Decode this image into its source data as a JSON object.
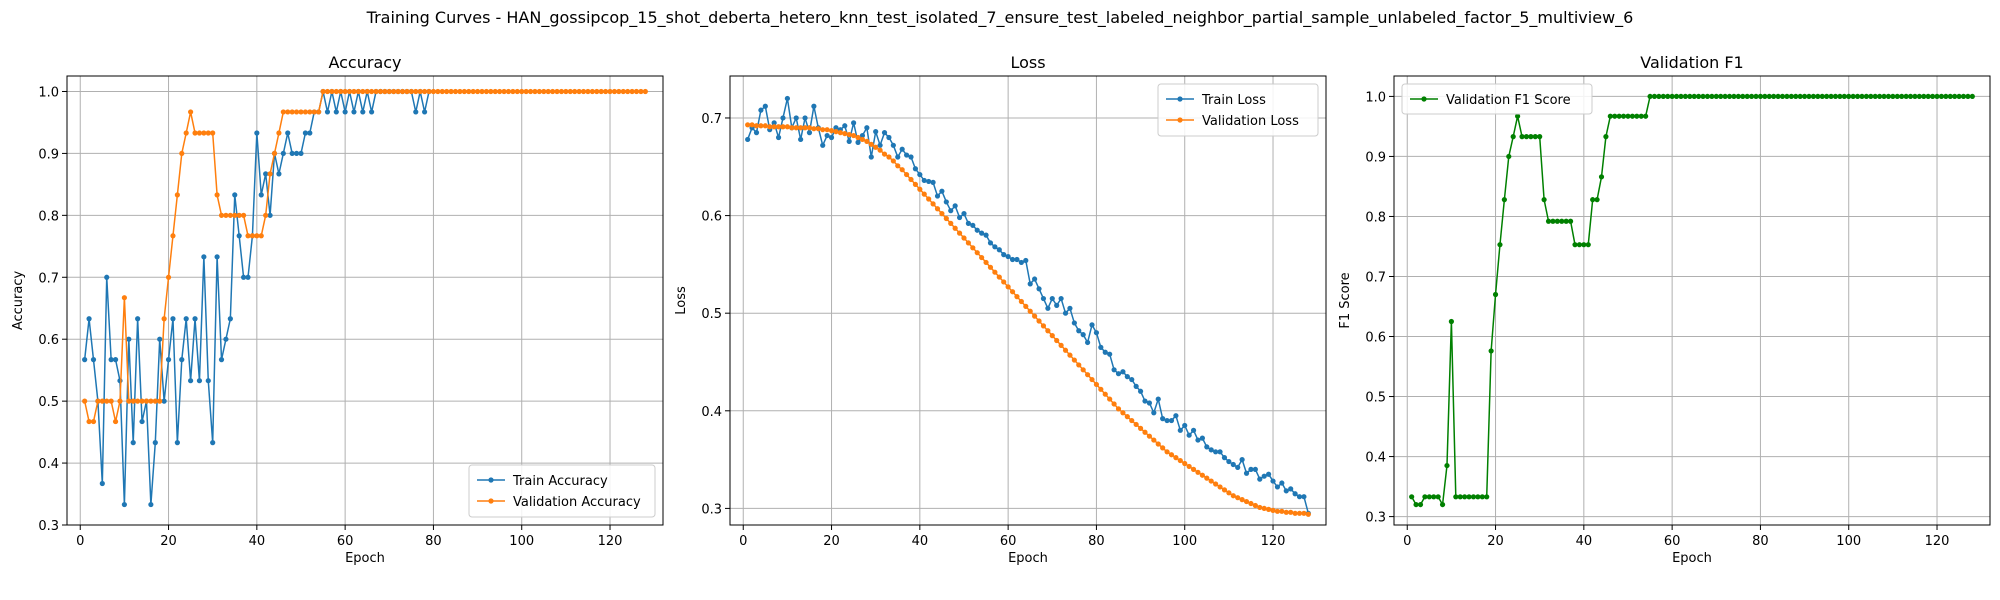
{
  "figure": {
    "suptitle": "Training Curves - HAN_gossipcop_15_shot_deberta_hetero_knn_test_isolated_7_ensure_test_labeled_neighbor_partial_sample_unlabeled_factor_5_multiview_6"
  },
  "colors": {
    "blue": "#1f77b4",
    "orange": "#ff7f0e",
    "green": "#008000",
    "grid": "#b0b0b0"
  },
  "chart_data": [
    {
      "type": "line",
      "title": "Accuracy",
      "xlabel": "Epoch",
      "ylabel": "Accuracy",
      "xlim": [
        -3,
        132
      ],
      "ylim": [
        0.3,
        1.025
      ],
      "xticks": [
        0,
        20,
        40,
        60,
        80,
        100,
        120
      ],
      "yticks": [
        0.3,
        0.4,
        0.5,
        0.6,
        0.7,
        0.8,
        0.9,
        1.0
      ],
      "grid": true,
      "legend_position": "lower-right",
      "series": [
        {
          "name": "Train Accuracy",
          "color": "#1f77b4",
          "x_start": 1,
          "values": [
            0.567,
            0.633,
            0.567,
            0.5,
            0.367,
            0.7,
            0.567,
            0.567,
            0.533,
            0.333,
            0.6,
            0.433,
            0.633,
            0.467,
            0.5,
            0.333,
            0.433,
            0.6,
            0.5,
            0.567,
            0.633,
            0.433,
            0.567,
            0.633,
            0.533,
            0.633,
            0.533,
            0.733,
            0.533,
            0.433,
            0.733,
            0.567,
            0.6,
            0.633,
            0.833,
            0.767,
            0.7,
            0.7,
            0.767,
            0.933,
            0.833,
            0.867,
            0.8,
            0.9,
            0.867,
            0.9,
            0.933,
            0.9,
            0.9,
            0.9,
            0.933,
            0.933,
            0.967,
            0.967,
            1.0,
            0.967,
            1.0,
            0.967,
            1.0,
            0.967,
            1.0,
            0.967,
            1.0,
            0.967,
            1.0,
            0.967,
            1.0,
            1.0,
            1.0,
            1.0,
            1.0,
            1.0,
            1.0,
            1.0,
            1.0,
            0.967,
            1.0,
            0.967,
            1.0
          ]
        },
        {
          "name": "Validation Accuracy",
          "color": "#ff7f0e",
          "x_start": 1,
          "values": [
            0.5,
            0.467,
            0.467,
            0.5,
            0.5,
            0.5,
            0.5,
            0.467,
            0.5,
            0.667,
            0.5,
            0.5,
            0.5,
            0.5,
            0.5,
            0.5,
            0.5,
            0.5,
            0.633,
            0.7,
            0.767,
            0.833,
            0.9,
            0.933,
            0.967,
            0.933,
            0.933,
            0.933,
            0.933,
            0.933,
            0.833,
            0.8,
            0.8,
            0.8,
            0.8,
            0.8,
            0.8,
            0.767,
            0.767,
            0.767,
            0.767,
            0.8,
            0.867,
            0.9,
            0.933,
            0.967,
            0.967,
            0.967,
            0.967,
            0.967,
            0.967,
            0.967,
            0.967,
            0.967,
            1.0,
            1.0,
            1.0,
            1.0,
            1.0,
            1.0,
            1.0,
            1.0,
            1.0,
            1.0,
            1.0,
            1.0,
            1.0,
            1.0,
            1.0,
            1.0,
            1.0,
            1.0,
            1.0,
            1.0,
            1.0,
            1.0,
            1.0,
            1.0,
            1.0,
            1.0,
            1.0,
            1.0,
            1.0,
            1.0,
            1.0,
            1.0,
            1.0,
            1.0,
            1.0,
            1.0,
            1.0,
            1.0,
            1.0,
            1.0,
            1.0,
            1.0,
            1.0,
            1.0,
            1.0,
            1.0,
            1.0,
            1.0,
            1.0,
            1.0,
            1.0,
            1.0,
            1.0,
            1.0,
            1.0,
            1.0,
            1.0,
            1.0,
            1.0,
            1.0,
            1.0,
            1.0,
            1.0,
            1.0,
            1.0,
            1.0,
            1.0,
            1.0,
            1.0,
            1.0,
            1.0,
            1.0,
            1.0,
            1.0
          ]
        }
      ]
    },
    {
      "type": "line",
      "title": "Loss",
      "xlabel": "Epoch",
      "ylabel": "Loss",
      "xlim": [
        -3,
        132
      ],
      "ylim": [
        0.283,
        0.743
      ],
      "xticks": [
        0,
        20,
        40,
        60,
        80,
        100,
        120
      ],
      "yticks": [
        0.3,
        0.4,
        0.5,
        0.6,
        0.7
      ],
      "grid": true,
      "legend_position": "upper-right",
      "series": [
        {
          "name": "Train Loss",
          "color": "#1f77b4",
          "x_start": 1,
          "values": [
            0.678,
            0.69,
            0.685,
            0.708,
            0.712,
            0.688,
            0.695,
            0.68,
            0.7,
            0.72,
            0.69,
            0.7,
            0.678,
            0.7,
            0.685,
            0.712,
            0.69,
            0.672,
            0.682,
            0.68,
            0.69,
            0.688,
            0.692,
            0.676,
            0.695,
            0.675,
            0.682,
            0.69,
            0.66,
            0.686,
            0.672,
            0.685,
            0.68,
            0.672,
            0.66,
            0.668,
            0.662,
            0.66,
            0.648,
            0.642,
            0.636,
            0.635,
            0.634,
            0.62,
            0.625,
            0.614,
            0.605,
            0.61,
            0.598,
            0.602,
            0.592,
            0.59,
            0.585,
            0.582,
            0.58,
            0.572,
            0.568,
            0.565,
            0.56,
            0.558,
            0.555,
            0.555,
            0.552,
            0.554,
            0.53,
            0.535,
            0.525,
            0.515,
            0.505,
            0.515,
            0.508,
            0.515,
            0.5,
            0.505,
            0.49,
            0.482,
            0.478,
            0.47,
            0.488,
            0.48,
            0.465,
            0.46,
            0.458,
            0.442,
            0.438,
            0.44,
            0.435,
            0.432,
            0.425,
            0.42,
            0.41,
            0.408,
            0.398,
            0.412,
            0.392,
            0.39,
            0.39,
            0.395,
            0.38,
            0.385,
            0.375,
            0.38,
            0.37,
            0.372,
            0.363,
            0.36,
            0.358,
            0.358,
            0.352,
            0.348,
            0.345,
            0.342,
            0.35,
            0.336,
            0.34,
            0.34,
            0.33,
            0.333,
            0.335,
            0.328,
            0.322,
            0.326,
            0.318,
            0.32,
            0.315,
            0.312,
            0.312,
            0.295
          ]
        },
        {
          "name": "Validation Loss",
          "color": "#ff7f0e",
          "x_start": 1,
          "values": [
            0.693,
            0.693,
            0.692,
            0.692,
            0.692,
            0.691,
            0.691,
            0.691,
            0.691,
            0.691,
            0.69,
            0.69,
            0.69,
            0.69,
            0.69,
            0.689,
            0.689,
            0.688,
            0.688,
            0.687,
            0.686,
            0.685,
            0.684,
            0.683,
            0.682,
            0.68,
            0.678,
            0.676,
            0.673,
            0.67,
            0.667,
            0.663,
            0.66,
            0.656,
            0.651,
            0.647,
            0.642,
            0.637,
            0.632,
            0.627,
            0.622,
            0.617,
            0.612,
            0.607,
            0.602,
            0.597,
            0.592,
            0.587,
            0.582,
            0.577,
            0.572,
            0.567,
            0.562,
            0.557,
            0.552,
            0.547,
            0.542,
            0.537,
            0.532,
            0.527,
            0.522,
            0.517,
            0.512,
            0.507,
            0.502,
            0.497,
            0.492,
            0.487,
            0.482,
            0.477,
            0.472,
            0.467,
            0.462,
            0.457,
            0.452,
            0.447,
            0.442,
            0.437,
            0.432,
            0.427,
            0.422,
            0.417,
            0.412,
            0.407,
            0.402,
            0.398,
            0.394,
            0.39,
            0.386,
            0.382,
            0.378,
            0.374,
            0.37,
            0.366,
            0.362,
            0.358,
            0.355,
            0.352,
            0.349,
            0.346,
            0.343,
            0.34,
            0.337,
            0.334,
            0.331,
            0.328,
            0.325,
            0.322,
            0.319,
            0.316,
            0.313,
            0.311,
            0.309,
            0.307,
            0.305,
            0.303,
            0.301,
            0.3,
            0.299,
            0.298,
            0.297,
            0.297,
            0.296,
            0.296,
            0.295,
            0.295,
            0.295,
            0.294
          ]
        }
      ]
    },
    {
      "type": "line",
      "title": "Validation F1",
      "xlabel": "Epoch",
      "ylabel": "F1 Score",
      "xlim": [
        -3,
        132
      ],
      "ylim": [
        0.286,
        1.034
      ],
      "xticks": [
        0,
        20,
        40,
        60,
        80,
        100,
        120
      ],
      "yticks": [
        0.3,
        0.4,
        0.5,
        0.6,
        0.7,
        0.8,
        0.9,
        1.0
      ],
      "grid": true,
      "legend_position": "upper-left",
      "series": [
        {
          "name": "Validation F1 Score",
          "color": "#008000",
          "x_start": 1,
          "values": [
            0.333,
            0.32,
            0.32,
            0.333,
            0.333,
            0.333,
            0.333,
            0.32,
            0.385,
            0.625,
            0.333,
            0.333,
            0.333,
            0.333,
            0.333,
            0.333,
            0.333,
            0.333,
            0.576,
            0.67,
            0.753,
            0.828,
            0.9,
            0.933,
            0.967,
            0.933,
            0.933,
            0.933,
            0.933,
            0.933,
            0.828,
            0.792,
            0.792,
            0.792,
            0.792,
            0.792,
            0.792,
            0.753,
            0.753,
            0.753,
            0.753,
            0.828,
            0.828,
            0.866,
            0.933,
            0.967,
            0.967,
            0.967,
            0.967,
            0.967,
            0.967,
            0.967,
            0.967,
            0.967,
            1.0,
            1.0,
            1.0,
            1.0,
            1.0,
            1.0,
            1.0,
            1.0,
            1.0,
            1.0,
            1.0,
            1.0,
            1.0,
            1.0,
            1.0,
            1.0,
            1.0,
            1.0,
            1.0,
            1.0,
            1.0,
            1.0,
            1.0,
            1.0,
            1.0,
            1.0,
            1.0,
            1.0,
            1.0,
            1.0,
            1.0,
            1.0,
            1.0,
            1.0,
            1.0,
            1.0,
            1.0,
            1.0,
            1.0,
            1.0,
            1.0,
            1.0,
            1.0,
            1.0,
            1.0,
            1.0,
            1.0,
            1.0,
            1.0,
            1.0,
            1.0,
            1.0,
            1.0,
            1.0,
            1.0,
            1.0,
            1.0,
            1.0,
            1.0,
            1.0,
            1.0,
            1.0,
            1.0,
            1.0,
            1.0,
            1.0,
            1.0,
            1.0,
            1.0,
            1.0,
            1.0,
            1.0,
            1.0,
            1.0
          ]
        }
      ]
    }
  ]
}
